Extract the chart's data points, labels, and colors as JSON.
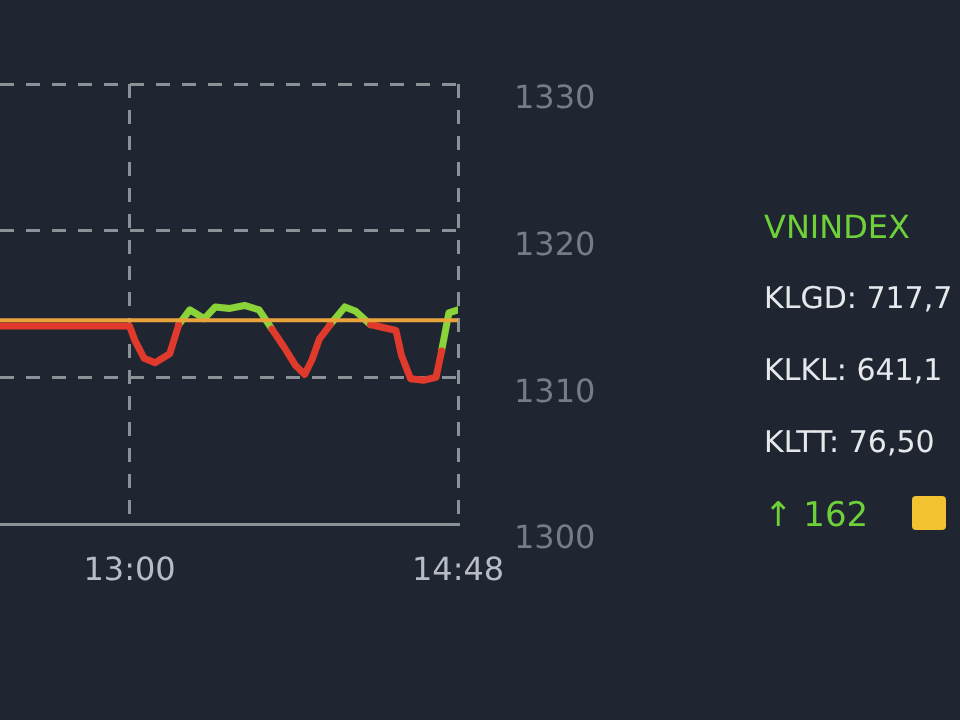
{
  "chart_data": {
    "type": "line",
    "x": [
      12.29,
      13.0,
      13.03,
      13.08,
      13.14,
      13.22,
      13.27,
      13.33,
      13.41,
      13.47,
      13.55,
      13.63,
      13.71,
      13.78,
      13.85,
      13.91,
      13.96,
      14.0,
      14.04,
      14.1,
      14.18,
      14.24,
      14.32,
      14.39,
      14.46,
      14.49,
      14.54,
      14.61,
      14.68,
      14.71,
      14.75,
      14.8
    ],
    "series": [
      {
        "color": "#e03a2c",
        "values": [
          1313.5,
          1313.5,
          1312.5,
          1311.3,
          1311.0,
          1311.6,
          1313.6,
          null,
          null,
          null,
          null,
          null,
          null,
          1313.3,
          1312.0,
          1310.8,
          1310.2,
          1311.2,
          1312.6,
          1313.6,
          null,
          null,
          1313.6,
          1313.4,
          1313.2,
          1311.5,
          1309.9,
          1309.8,
          1310.0,
          1311.8,
          null,
          null
        ]
      },
      {
        "color": "#8ad43a",
        "values": [
          null,
          null,
          null,
          null,
          null,
          null,
          1313.6,
          1314.6,
          1314.0,
          1314.8,
          1314.7,
          1314.9,
          1314.6,
          1313.3,
          null,
          null,
          null,
          null,
          null,
          1313.6,
          1314.8,
          1314.5,
          1313.6,
          null,
          null,
          null,
          null,
          null,
          null,
          1311.8,
          1314.4,
          1314.6
        ]
      }
    ],
    "xlim": [
      12.29,
      14.8
    ],
    "xticks": [
      {
        "value": 13,
        "label": "13:00"
      },
      {
        "value": 14.8,
        "label": "14:48"
      }
    ],
    "ylim": [
      1300,
      1330
    ],
    "yticks": [
      1300,
      1310,
      1320,
      1330
    ],
    "ref_lines": [
      {
        "axis": "y",
        "value": 1313.9,
        "color": "#e8a33a"
      }
    ],
    "grid": true,
    "legend": false,
    "marker": "none",
    "line_style": "solid",
    "annotations": [
      "VNINDEX",
      "KLGD: 717,7",
      "KLKL: 641,1",
      "KLTT: 76,50",
      "↑ 162"
    ]
  }
}
